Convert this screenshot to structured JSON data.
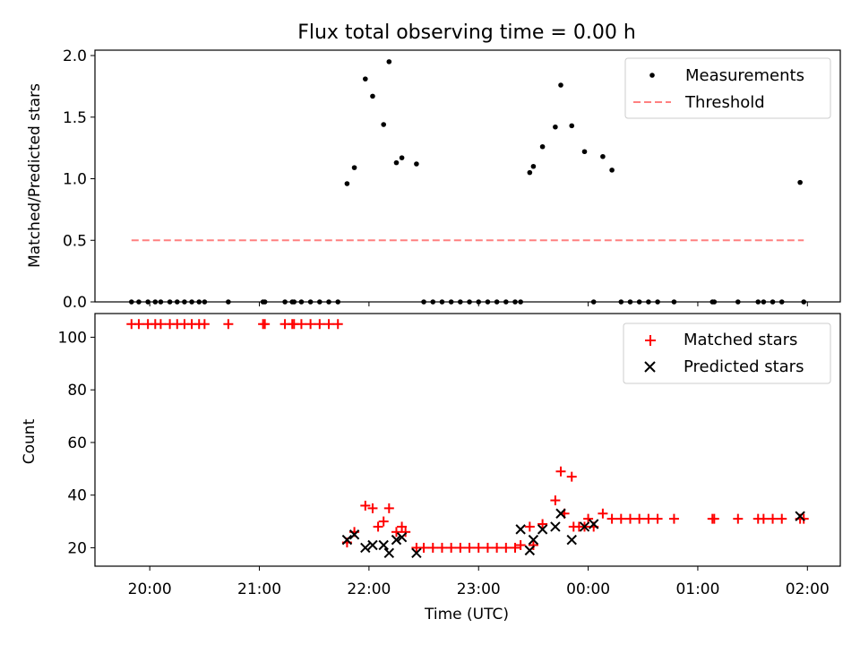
{
  "title": "Flux total observing time = 0.00 h",
  "colors": {
    "measurements": "#000000",
    "threshold": "#ff8080",
    "matched": "#ff0000",
    "predicted": "#000000"
  },
  "chart_data": [
    {
      "type": "scatter",
      "ylabel": "Matched/Predicted stars",
      "ylim": [
        0,
        2.0
      ],
      "yticks": [
        "0.0",
        "0.5",
        "1.0",
        "1.5",
        "2.0"
      ],
      "legend_position": "top-right",
      "legend": [
        "Measurements",
        "Threshold"
      ],
      "series": [
        {
          "name": "Measurements",
          "x": [
            "19:50",
            "19:54",
            "19:59",
            "20:03",
            "20:06",
            "20:11",
            "20:15",
            "20:19",
            "20:23",
            "20:27",
            "20:30",
            "20:43",
            "21:02",
            "21:03",
            "21:14",
            "21:18",
            "21:19",
            "21:23",
            "21:28",
            "21:33",
            "21:38",
            "21:43",
            "21:48",
            "21:52",
            "21:58",
            "22:02",
            "22:08",
            "22:11",
            "22:15",
            "22:18",
            "22:26",
            "22:30",
            "22:35",
            "22:40",
            "22:45",
            "22:50",
            "22:55",
            "23:00",
            "23:05",
            "23:10",
            "23:15",
            "23:20",
            "23:23",
            "23:28",
            "23:30",
            "23:35",
            "23:42",
            "23:45",
            "23:51",
            "23:58",
            "00:03",
            "00:08",
            "00:13",
            "00:18",
            "00:23",
            "00:28",
            "00:33",
            "00:38",
            "00:47",
            "01:08",
            "01:09",
            "01:22",
            "01:33",
            "01:36",
            "01:41",
            "01:46",
            "01:56",
            "01:58"
          ],
          "y": [
            0,
            0,
            0,
            0,
            0,
            0,
            0,
            0,
            0,
            0,
            0,
            0,
            0,
            0,
            0,
            0,
            0,
            0,
            0,
            0,
            0,
            0,
            0.96,
            1.09,
            1.81,
            1.67,
            1.44,
            1.95,
            1.13,
            1.17,
            1.12,
            0,
            0,
            0,
            0,
            0,
            0,
            0,
            0,
            0,
            0,
            0,
            0,
            1.05,
            1.1,
            1.26,
            1.42,
            1.76,
            1.43,
            1.22,
            0,
            1.18,
            1.07,
            0,
            0,
            0,
            0,
            0,
            0,
            0,
            0,
            0,
            0,
            0,
            0,
            0,
            0.97,
            0
          ]
        },
        {
          "name": "Threshold",
          "x": [
            "19:50",
            "01:58"
          ],
          "y": [
            0.5,
            0.5
          ]
        }
      ]
    },
    {
      "type": "scatter",
      "xlabel": "Time (UTC)",
      "ylabel": "Count",
      "ylim": [
        13,
        109
      ],
      "yticks": [
        "20",
        "40",
        "60",
        "80",
        "100"
      ],
      "xticks": [
        "20:00",
        "21:00",
        "22:00",
        "23:00",
        "00:00",
        "01:00",
        "02:00"
      ],
      "legend_position": "top-right",
      "legend": [
        "Matched stars",
        "Predicted stars"
      ],
      "series": [
        {
          "name": "Matched stars",
          "x": [
            "19:50",
            "19:54",
            "19:59",
            "20:03",
            "20:06",
            "20:11",
            "20:15",
            "20:19",
            "20:23",
            "20:27",
            "20:30",
            "20:43",
            "21:02",
            "21:03",
            "21:14",
            "21:18",
            "21:19",
            "21:23",
            "21:28",
            "21:33",
            "21:38",
            "21:43",
            "21:48",
            "21:52",
            "21:58",
            "22:02",
            "22:08",
            "22:11",
            "22:15",
            "22:18",
            "22:26",
            "22:30",
            "22:35",
            "22:40",
            "22:45",
            "22:50",
            "22:55",
            "23:00",
            "23:05",
            "23:10",
            "23:15",
            "23:20",
            "23:23",
            "23:28",
            "23:30",
            "23:35",
            "23:42",
            "23:45",
            "23:51",
            "23:58",
            "00:03",
            "00:08",
            "00:13",
            "00:18",
            "00:23",
            "00:28",
            "00:33",
            "00:38",
            "00:47",
            "01:08",
            "01:09",
            "01:22",
            "01:33",
            "01:36",
            "01:41",
            "01:46",
            "01:56",
            "01:58",
            "22:05",
            "23:47",
            "23:55",
            "00:00",
            "22:20",
            "23:52"
          ],
          "y": [
            105,
            105,
            105,
            105,
            105,
            105,
            105,
            105,
            105,
            105,
            105,
            105,
            105,
            105,
            105,
            105,
            105,
            105,
            105,
            105,
            105,
            105,
            22,
            26,
            36,
            35,
            30,
            35,
            26,
            28,
            20,
            20,
            20,
            20,
            20,
            20,
            20,
            20,
            20,
            20,
            20,
            20,
            21,
            28,
            21,
            29,
            38,
            49,
            47,
            28,
            28,
            33,
            31,
            31,
            31,
            31,
            31,
            31,
            31,
            31,
            31,
            31,
            31,
            31,
            31,
            31,
            31,
            31,
            28,
            33,
            28,
            31,
            26,
            28
          ]
        },
        {
          "name": "Predicted stars",
          "x": [
            "21:48",
            "21:52",
            "21:58",
            "22:02",
            "22:08",
            "22:11",
            "22:15",
            "22:18",
            "22:26",
            "23:23",
            "23:28",
            "23:30",
            "23:35",
            "23:42",
            "23:45",
            "23:51",
            "23:58",
            "00:03",
            "01:56"
          ],
          "y": [
            23,
            25,
            20,
            21,
            21,
            18,
            23,
            24,
            18,
            27,
            19,
            23,
            27,
            28,
            33,
            23,
            28,
            29,
            32
          ]
        }
      ]
    }
  ]
}
